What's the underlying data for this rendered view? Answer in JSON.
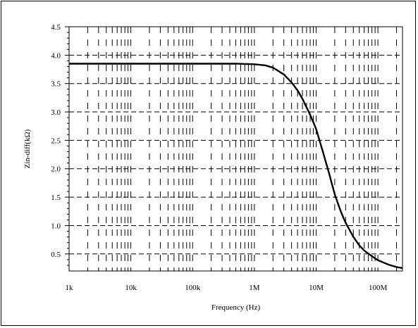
{
  "chart_data": {
    "type": "line",
    "title": "",
    "xlabel": "Frequency (Hz)",
    "ylabel": "Zin-diff(kΩ)",
    "x_scale": "log",
    "xlim": [
      1000,
      250000000
    ],
    "ylim": [
      0.2,
      4.5
    ],
    "x_ticks": [
      {
        "value": 1000,
        "label": "1k"
      },
      {
        "value": 10000,
        "label": "10k"
      },
      {
        "value": 100000,
        "label": "100k"
      },
      {
        "value": 1000000,
        "label": "1M"
      },
      {
        "value": 10000000,
        "label": "10M"
      },
      {
        "value": 100000000,
        "label": "100M"
      }
    ],
    "y_ticks": [
      {
        "value": 0.5,
        "label": "0.5"
      },
      {
        "value": 1.0,
        "label": "1.0"
      },
      {
        "value": 1.5,
        "label": "1.5"
      },
      {
        "value": 2.0,
        "label": "2.0"
      },
      {
        "value": 2.5,
        "label": "2.5"
      },
      {
        "value": 3.0,
        "label": "3.0"
      },
      {
        "value": 3.5,
        "label": "3.5"
      },
      {
        "value": 4.0,
        "label": "4.0"
      },
      {
        "value": 4.5,
        "label": "4.5"
      }
    ],
    "grid": true,
    "series": [
      {
        "x": [
          1000,
          10000,
          100000,
          500000,
          1000000,
          1500000,
          2000000,
          3000000,
          4000000,
          5000000,
          6000000,
          8000000,
          10000000,
          13000000,
          16000000,
          20000000,
          25000000,
          30000000,
          40000000,
          50000000,
          60000000,
          80000000,
          100000000,
          150000000,
          200000000,
          250000000
        ],
        "y": [
          3.85,
          3.85,
          3.85,
          3.85,
          3.84,
          3.82,
          3.78,
          3.66,
          3.52,
          3.38,
          3.23,
          2.95,
          2.7,
          2.28,
          1.94,
          1.55,
          1.25,
          1.05,
          0.8,
          0.65,
          0.56,
          0.46,
          0.39,
          0.31,
          0.27,
          0.25
        ]
      }
    ]
  }
}
